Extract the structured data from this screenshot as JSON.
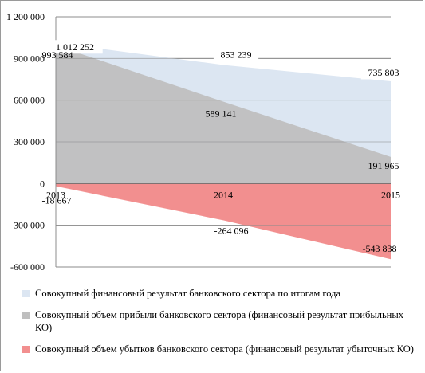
{
  "chart_data": {
    "type": "area",
    "categories": [
      "2013",
      "2014",
      "2015"
    ],
    "ylim": [
      -600000,
      1200000
    ],
    "yticks": [
      1200000,
      900000,
      600000,
      300000,
      0,
      -300000,
      -600000
    ],
    "ytick_labels": [
      "1 200 000",
      "900 000",
      "600 000",
      "300 000",
      "0",
      "-300 000",
      "-600 000"
    ],
    "grid": true,
    "legend_position": "bottom",
    "series": [
      {
        "name": "Совокупный финансовый результат банковского сектора по итогам года",
        "values": [
          1012252,
          853239,
          735803
        ],
        "labels": [
          "1 012 252",
          "853 239",
          "735 803"
        ],
        "color": "#dce6f2"
      },
      {
        "name": "Совокупный объем прибыли банковского сектора (финансовый результат прибыльных КО)",
        "values": [
          993584,
          589141,
          191965
        ],
        "labels": [
          "993 584",
          "589 141",
          "191 965"
        ],
        "color": "#bfbfbf"
      },
      {
        "name": "Совокупный объем убытков банковского сектора (финансовый результат убыточных КО)",
        "values": [
          -18667,
          -264096,
          -543838
        ],
        "labels": [
          "-18 667",
          "-264 096",
          "-543 838"
        ],
        "color": "#f28f8f"
      }
    ]
  }
}
